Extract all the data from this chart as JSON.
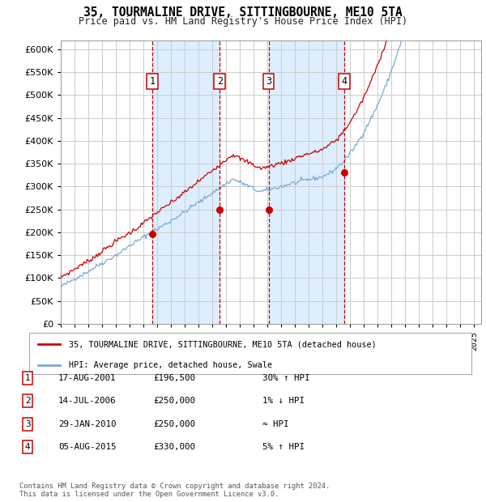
{
  "title": "35, TOURMALINE DRIVE, SITTINGBOURNE, ME10 5TA",
  "subtitle": "Price paid vs. HM Land Registry's House Price Index (HPI)",
  "ytick_values": [
    0,
    50000,
    100000,
    150000,
    200000,
    250000,
    300000,
    350000,
    400000,
    450000,
    500000,
    550000,
    600000
  ],
  "xlim_start": 1995.0,
  "xlim_end": 2025.5,
  "ylim_min": 0,
  "ylim_max": 620000,
  "transactions": [
    {
      "num": 1,
      "date_num": 2001.63,
      "price": 196500,
      "label": "1",
      "date_str": "17-AUG-2001",
      "price_str": "£196,500",
      "hpi_str": "30% ↑ HPI"
    },
    {
      "num": 2,
      "date_num": 2006.53,
      "price": 250000,
      "label": "2",
      "date_str": "14-JUL-2006",
      "price_str": "£250,000",
      "hpi_str": "1% ↓ HPI"
    },
    {
      "num": 3,
      "date_num": 2010.08,
      "price": 250000,
      "label": "3",
      "date_str": "29-JAN-2010",
      "price_str": "£250,000",
      "hpi_str": "≈ HPI"
    },
    {
      "num": 4,
      "date_num": 2015.59,
      "price": 330000,
      "label": "4",
      "date_str": "05-AUG-2015",
      "price_str": "£330,000",
      "hpi_str": "5% ↑ HPI"
    }
  ],
  "legend_line1": "35, TOURMALINE DRIVE, SITTINGBOURNE, ME10 5TA (detached house)",
  "legend_line2": "HPI: Average price, detached house, Swale",
  "footnote": "Contains HM Land Registry data © Crown copyright and database right 2024.\nThis data is licensed under the Open Government Licence v3.0.",
  "hpi_color": "#7aaad4",
  "price_color": "#cc0000",
  "shade_color": "#ddeeff",
  "dashed_color": "#cc0000",
  "background_color": "#ffffff",
  "grid_color": "#cccccc"
}
